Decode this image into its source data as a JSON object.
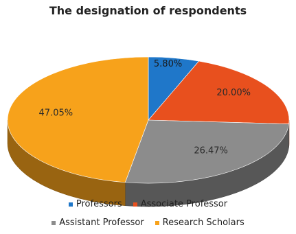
{
  "chart_data": {
    "type": "pie",
    "title": "The designation of respondents",
    "slices": [
      {
        "name": "Professors",
        "value": 5.8,
        "label": "5.80%",
        "color": "#1f77c9"
      },
      {
        "name": "Associate Professor",
        "value": 20.0,
        "label": "20.00%",
        "color": "#e8501e"
      },
      {
        "name": "Assistant Professor",
        "value": 26.47,
        "label": "26.47%",
        "color": "#8c8c8c"
      },
      {
        "name": "Research Scholars",
        "value": 47.05,
        "label": "47.05%",
        "color": "#f7a21b"
      }
    ],
    "legend_placement": "bottom",
    "style": "3d-pie"
  }
}
